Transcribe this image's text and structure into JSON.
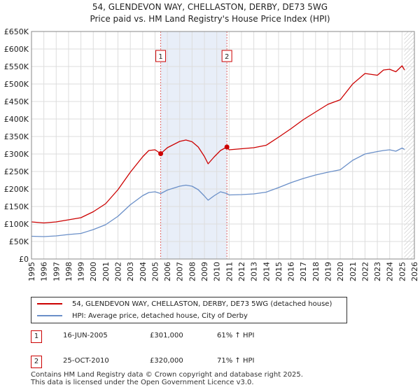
{
  "chart_data": {
    "type": "line",
    "title": "54, GLENDEVON WAY, CHELLASTON, DERBY, DE73 5WG",
    "subtitle": "Price paid vs. HM Land Registry's House Price Index (HPI)",
    "xlim": [
      1995,
      2026
    ],
    "ylim": [
      0,
      650000
    ],
    "x_ticks": [
      1995,
      1996,
      1997,
      1998,
      1999,
      2000,
      2001,
      2002,
      2003,
      2004,
      2005,
      2006,
      2007,
      2008,
      2009,
      2010,
      2011,
      2012,
      2013,
      2014,
      2015,
      2016,
      2017,
      2018,
      2019,
      2020,
      2021,
      2022,
      2023,
      2024,
      2025,
      2026
    ],
    "y_ticks": [
      0,
      50000,
      100000,
      150000,
      200000,
      250000,
      300000,
      350000,
      400000,
      450000,
      500000,
      550000,
      600000,
      650000
    ],
    "y_tick_labels": [
      "£0",
      "£50K",
      "£100K",
      "£150K",
      "£200K",
      "£250K",
      "£300K",
      "£350K",
      "£400K",
      "£450K",
      "£500K",
      "£550K",
      "£600K",
      "£650K"
    ],
    "grid": true,
    "shaded_region": [
      2005.46,
      2010.82
    ],
    "hatched_from": 2025.17,
    "colors": {
      "property": "#cc0000",
      "hpi": "#6a8fc8",
      "shade": "#e8eef8",
      "marker_line": "#dd6666"
    },
    "series": [
      {
        "name": "54, GLENDEVON WAY, CHELLASTON, DERBY, DE73 5WG (detached house)",
        "x": [
          1995,
          1996,
          1997,
          1998,
          1999,
          2000,
          2001,
          2002,
          2003,
          2004,
          2004.5,
          2005,
          2005.46,
          2006,
          2007,
          2007.5,
          2008,
          2008.5,
          2009,
          2009.3,
          2009.8,
          2010.3,
          2010.82,
          2011,
          2012,
          2013,
          2014,
          2015,
          2016,
          2017,
          2018,
          2019,
          2020,
          2021,
          2022,
          2023,
          2023.5,
          2024,
          2024.5,
          2025,
          2025.2
        ],
        "values": [
          106000,
          103000,
          106000,
          112000,
          118000,
          135000,
          158000,
          198000,
          248000,
          292000,
          310000,
          312000,
          301000,
          318000,
          336000,
          340000,
          335000,
          320000,
          293000,
          272000,
          292000,
          310000,
          320000,
          312000,
          315000,
          318000,
          325000,
          348000,
          372000,
          398000,
          420000,
          442000,
          455000,
          500000,
          530000,
          525000,
          540000,
          542000,
          535000,
          552000,
          540000
        ]
      },
      {
        "name": "HPI: Average price, detached house, City of Derby",
        "x": [
          1995,
          1996,
          1997,
          1998,
          1999,
          2000,
          2001,
          2002,
          2003,
          2004,
          2004.5,
          2005,
          2005.46,
          2006,
          2007,
          2007.5,
          2008,
          2008.5,
          2009,
          2009.3,
          2009.8,
          2010.3,
          2010.82,
          2011,
          2012,
          2013,
          2014,
          2015,
          2016,
          2017,
          2018,
          2019,
          2020,
          2021,
          2022,
          2023,
          2023.5,
          2024,
          2024.5,
          2025,
          2025.2
        ],
        "values": [
          65000,
          64000,
          66000,
          70000,
          73000,
          84000,
          98000,
          122000,
          155000,
          181000,
          190000,
          192000,
          187000,
          197000,
          208000,
          211000,
          208000,
          198000,
          180000,
          168000,
          181000,
          192000,
          187000,
          183000,
          184000,
          186000,
          191000,
          204000,
          218000,
          230000,
          240000,
          248000,
          255000,
          282000,
          300000,
          307000,
          310000,
          312000,
          308000,
          317000,
          313000
        ]
      }
    ],
    "annotations": [
      {
        "label": "1",
        "x": 2005.46,
        "y": 301000
      },
      {
        "label": "2",
        "x": 2010.82,
        "y": 320000
      }
    ]
  },
  "legend": {
    "property_label": "54, GLENDEVON WAY, CHELLASTON, DERBY, DE73 5WG (detached house)",
    "hpi_label": "HPI: Average price, detached house, City of Derby"
  },
  "sales": [
    {
      "num": "1",
      "date": "16-JUN-2005",
      "price": "£301,000",
      "hpi_change": "61% ↑ HPI"
    },
    {
      "num": "2",
      "date": "25-OCT-2010",
      "price": "£320,000",
      "hpi_change": "71% ↑ HPI"
    }
  ],
  "footer": {
    "line1": "Contains HM Land Registry data © Crown copyright and database right 2025.",
    "line2": "This data is licensed under the Open Government Licence v3.0."
  }
}
